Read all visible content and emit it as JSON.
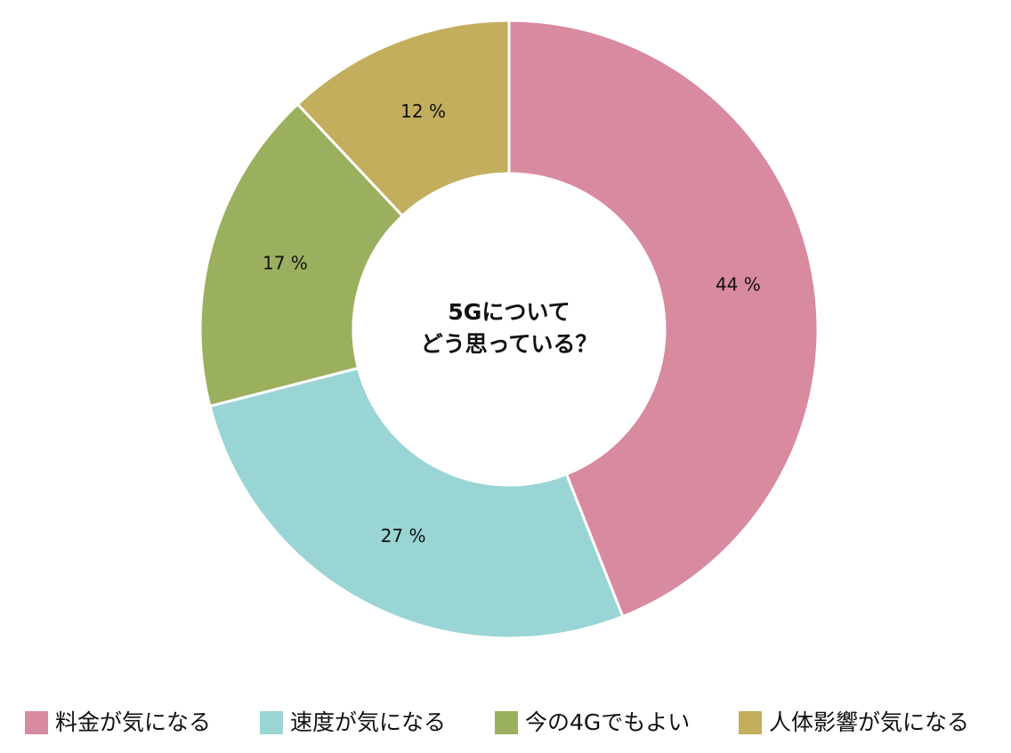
{
  "chart_data": {
    "type": "donut",
    "center_text": [
      "5Gについて",
      "どう思っている？"
    ],
    "categories": [
      "料金が気になる",
      "速度が気になる",
      "今の4Gでもよい",
      "人体影響が気になる"
    ],
    "values": [
      44,
      27,
      17,
      12
    ],
    "value_labels": [
      "44 %",
      "27 %",
      "17 %",
      "12 %"
    ],
    "colors": [
      "#d88a9e",
      "#99d5d4",
      "#9bb05e",
      "#c2ae5c"
    ],
    "legend": "bottom"
  }
}
